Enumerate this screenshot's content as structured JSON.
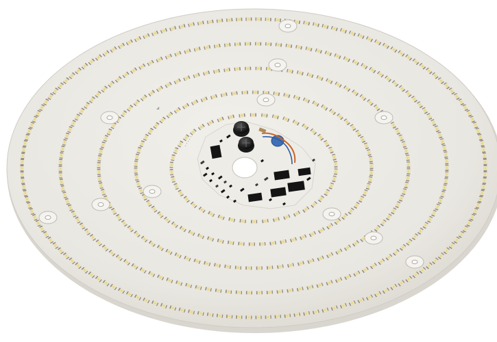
{
  "image": {
    "subject": "led-module-board",
    "colors": {
      "background": "#ffffff",
      "board": "#eceae4",
      "board_edge": "#c9c6bf",
      "led_body": "#f4efd6",
      "led_phosphor": "#e9d78f",
      "pad": "#8f8b84",
      "component_black": "#141414",
      "capacitor_blue": "#3f6fb5"
    },
    "ring_led_counts": [
      150,
      118,
      92,
      70,
      46
    ],
    "screw_holes": 11
  }
}
